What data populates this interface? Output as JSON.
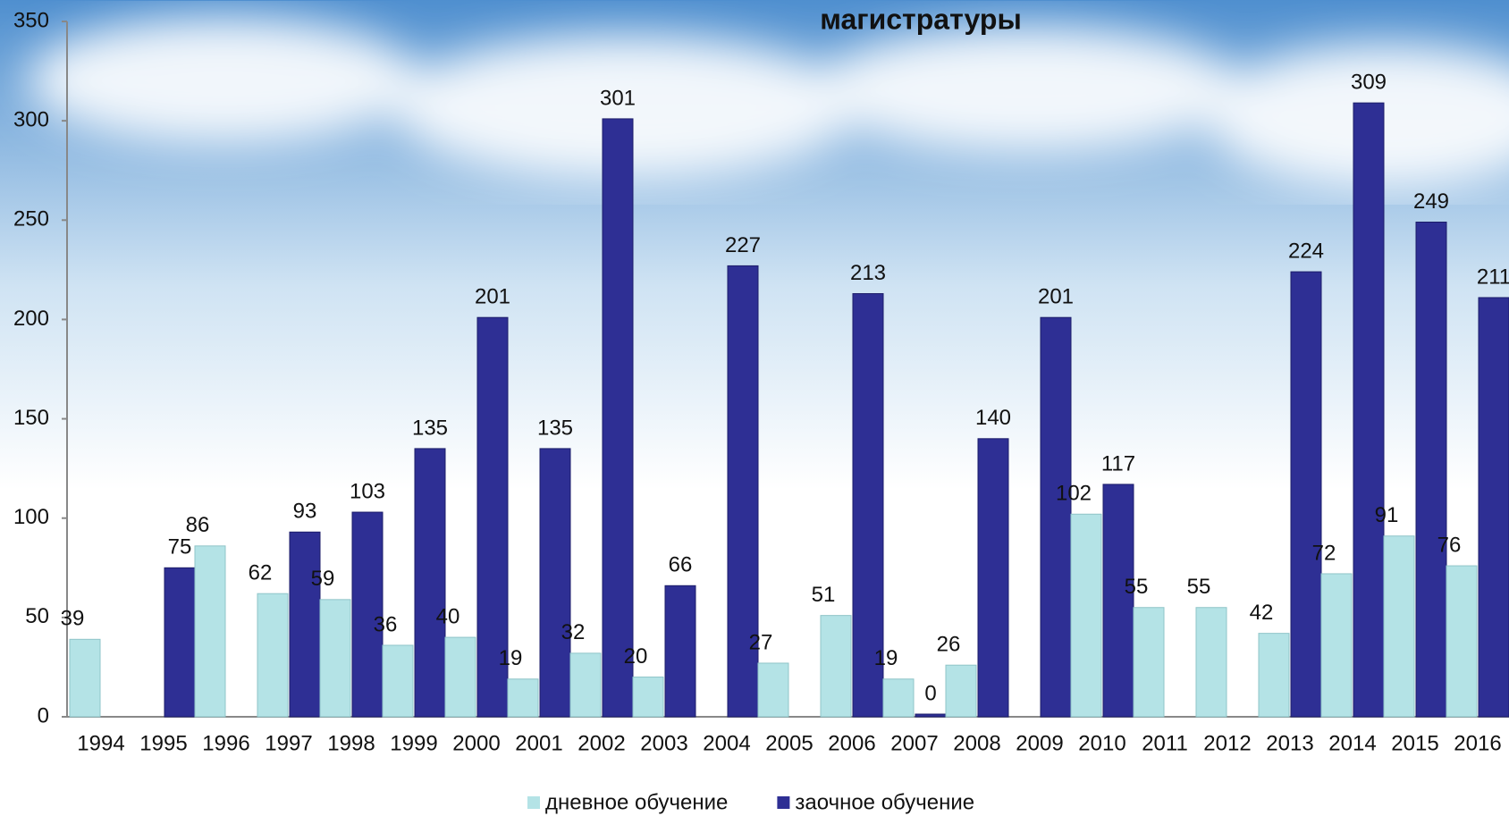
{
  "chart_data": {
    "type": "bar",
    "title": "магистратуры",
    "categories": [
      "1994",
      "1995",
      "1996",
      "1997",
      "1998",
      "1999",
      "2000",
      "2001",
      "2002",
      "2003",
      "2004",
      "2005",
      "2006",
      "2007",
      "2008",
      "2009",
      "2010",
      "2011",
      "2012",
      "2013",
      "2014",
      "2015",
      "2016"
    ],
    "series": [
      {
        "name": "дневное обучение",
        "color": "#b4e3e6",
        "values": [
          39,
          null,
          86,
          62,
          59,
          36,
          40,
          19,
          32,
          20,
          null,
          27,
          51,
          19,
          26,
          null,
          102,
          55,
          55,
          42,
          72,
          91,
          76
        ]
      },
      {
        "name": "заочное обучение",
        "color": "#2e2f94",
        "values": [
          null,
          75,
          null,
          93,
          103,
          135,
          201,
          135,
          301,
          66,
          227,
          null,
          213,
          0,
          140,
          201,
          117,
          null,
          null,
          224,
          309,
          249,
          211
        ]
      }
    ],
    "ylim": [
      0,
      350
    ],
    "yticks": [
      0,
      50,
      100,
      150,
      200,
      250,
      300,
      350
    ]
  }
}
